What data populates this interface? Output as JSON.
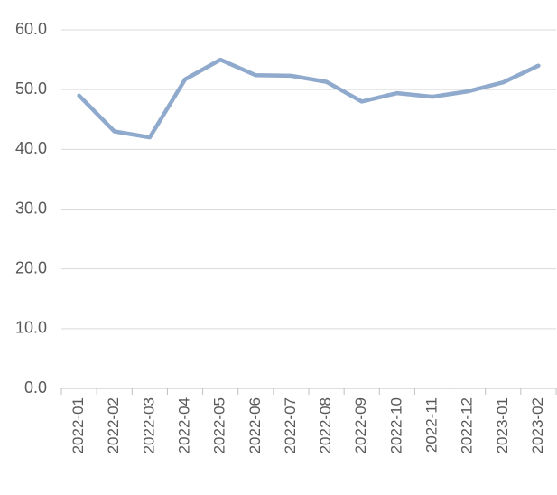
{
  "chart_data": {
    "type": "line",
    "categories": [
      "2022-01",
      "2022-02",
      "2022-03",
      "2022-04",
      "2022-05",
      "2022-06",
      "2022-07",
      "2022-08",
      "2022-09",
      "2022-10",
      "2022-11",
      "2022-12",
      "2023-01",
      "2023-02"
    ],
    "values": [
      49.0,
      43.0,
      42.0,
      51.7,
      55.0,
      52.4,
      52.3,
      51.3,
      48.0,
      49.4,
      48.8,
      49.7,
      51.2,
      54.0
    ],
    "color": "#8faacc",
    "ylim": [
      0,
      60
    ],
    "yticks": [
      {
        "value": 0,
        "label": "0.0"
      },
      {
        "value": 10,
        "label": "10.0"
      },
      {
        "value": 20,
        "label": "20.0"
      },
      {
        "value": 30,
        "label": "30.0"
      },
      {
        "value": 40,
        "label": "40.0"
      },
      {
        "value": 50,
        "label": "50.0"
      },
      {
        "value": 60,
        "label": "60.0"
      }
    ],
    "grid": true
  }
}
